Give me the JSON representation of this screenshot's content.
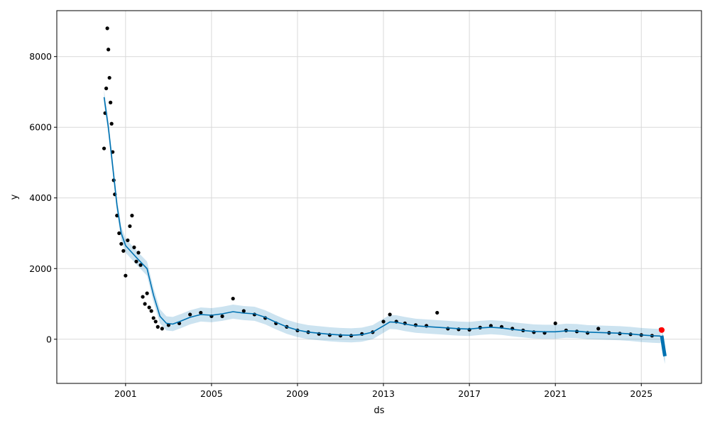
{
  "chart_data": {
    "type": "line",
    "title": "",
    "xlabel": "ds",
    "ylabel": "y",
    "xlim": [
      1997.8,
      2027.8
    ],
    "ylim": [
      -1250,
      9300
    ],
    "xticks": [
      2001,
      2005,
      2009,
      2013,
      2017,
      2021,
      2025
    ],
    "xtick_labels": [
      "2001",
      "2005",
      "2009",
      "2013",
      "2017",
      "2021",
      "2025"
    ],
    "yticks": [
      0,
      2000,
      4000,
      6000,
      8000
    ],
    "ytick_labels": [
      "0",
      "2000",
      "4000",
      "6000",
      "8000"
    ],
    "grid": true,
    "legend": "none",
    "colors": {
      "observed": "#000000",
      "forecast": "#0072B2",
      "uncertainty": "#0072B2",
      "highlight": "#ff0000",
      "grid": "#d9d9d9"
    },
    "series": [
      {
        "role": "forecast-line",
        "x": [
          2000.0,
          2000.2,
          2000.4,
          2000.6,
          2000.8,
          2001.0,
          2001.3,
          2001.6,
          2002.0,
          2002.3,
          2002.6,
          2002.9,
          2003.2,
          2003.6,
          2004.0,
          2004.5,
          2005.0,
          2005.5,
          2006.0,
          2006.5,
          2007.0,
          2007.5,
          2008.0,
          2008.5,
          2009.0,
          2009.5,
          2010.0,
          2010.5,
          2011.0,
          2011.5,
          2012.0,
          2012.5,
          2013.0,
          2013.3,
          2013.6,
          2014.0,
          2014.5,
          2015.0,
          2015.5,
          2016.0,
          2016.5,
          2017.0,
          2017.5,
          2018.0,
          2018.5,
          2019.0,
          2019.5,
          2020.0,
          2020.5,
          2021.0,
          2021.5,
          2022.0,
          2022.5,
          2023.0,
          2023.5,
          2024.0,
          2024.5,
          2025.0,
          2025.5,
          2025.9
        ],
        "y": [
          6850,
          6000,
          4900,
          3800,
          3000,
          2650,
          2450,
          2250,
          2000,
          1250,
          650,
          450,
          430,
          520,
          620,
          700,
          680,
          720,
          780,
          740,
          720,
          620,
          480,
          350,
          260,
          200,
          170,
          140,
          120,
          110,
          130,
          200,
          380,
          490,
          480,
          430,
          380,
          360,
          340,
          320,
          300,
          290,
          320,
          340,
          320,
          280,
          250,
          220,
          210,
          210,
          240,
          230,
          200,
          190,
          180,
          170,
          150,
          120,
          100,
          90
        ]
      },
      {
        "role": "uncertainty-band",
        "x": [
          2000.0,
          2000.2,
          2000.4,
          2000.6,
          2000.8,
          2001.0,
          2001.3,
          2001.6,
          2002.0,
          2002.3,
          2002.6,
          2002.9,
          2003.2,
          2003.6,
          2004.0,
          2004.5,
          2005.0,
          2005.5,
          2006.0,
          2006.5,
          2007.0,
          2007.5,
          2008.0,
          2008.5,
          2009.0,
          2009.5,
          2010.0,
          2010.5,
          2011.0,
          2011.5,
          2012.0,
          2012.5,
          2013.0,
          2013.3,
          2013.6,
          2014.0,
          2014.5,
          2015.0,
          2015.5,
          2016.0,
          2016.5,
          2017.0,
          2017.5,
          2018.0,
          2018.5,
          2019.0,
          2019.5,
          2020.0,
          2020.5,
          2021.0,
          2021.5,
          2022.0,
          2022.5,
          2023.0,
          2023.5,
          2024.0,
          2024.5,
          2025.0,
          2025.5,
          2025.9
        ],
        "lower": [
          6650,
          5800,
          4700,
          3600,
          2800,
          2450,
          2250,
          2050,
          1800,
          1050,
          450,
          250,
          230,
          320,
          420,
          500,
          480,
          520,
          580,
          540,
          520,
          420,
          280,
          150,
          60,
          0,
          -30,
          -60,
          -80,
          -90,
          -70,
          0,
          180,
          290,
          280,
          230,
          180,
          160,
          140,
          120,
          100,
          90,
          120,
          140,
          120,
          80,
          50,
          20,
          10,
          10,
          40,
          30,
          0,
          -10,
          -20,
          -30,
          -50,
          -80,
          -100,
          -110
        ],
        "upper": [
          7050,
          6200,
          5100,
          4000,
          3200,
          2850,
          2650,
          2450,
          2200,
          1450,
          850,
          650,
          630,
          720,
          820,
          900,
          880,
          920,
          980,
          940,
          920,
          820,
          680,
          550,
          460,
          400,
          370,
          340,
          320,
          310,
          330,
          400,
          580,
          690,
          680,
          630,
          580,
          560,
          540,
          520,
          500,
          490,
          520,
          540,
          520,
          480,
          450,
          420,
          410,
          410,
          440,
          430,
          400,
          390,
          380,
          370,
          350,
          320,
          300,
          290
        ]
      },
      {
        "role": "observed-points",
        "x": [
          2000.0,
          2000.05,
          2000.1,
          2000.15,
          2000.2,
          2000.25,
          2000.3,
          2000.35,
          2000.4,
          2000.45,
          2000.5,
          2000.6,
          2000.7,
          2000.8,
          2000.9,
          2001.0,
          2001.1,
          2001.2,
          2001.3,
          2001.4,
          2001.5,
          2001.6,
          2001.7,
          2001.8,
          2001.9,
          2002.0,
          2002.1,
          2002.2,
          2002.3,
          2002.4,
          2002.5,
          2002.7,
          2003.0,
          2003.5,
          2004.0,
          2004.5,
          2005.0,
          2005.5,
          2006.0,
          2006.5,
          2007.0,
          2007.5,
          2008.0,
          2008.5,
          2009.0,
          2009.5,
          2010.0,
          2010.5,
          2011.0,
          2011.5,
          2012.0,
          2012.5,
          2013.0,
          2013.3,
          2013.6,
          2014.0,
          2014.5,
          2015.0,
          2015.5,
          2016.0,
          2016.5,
          2017.0,
          2017.5,
          2018.0,
          2018.5,
          2019.0,
          2019.5,
          2020.0,
          2020.5,
          2021.0,
          2021.5,
          2022.0,
          2022.5,
          2023.0,
          2023.5,
          2024.0,
          2024.5,
          2025.0,
          2025.5,
          2025.9
        ],
        "y": [
          5400,
          6400,
          7100,
          8800,
          8200,
          7400,
          6700,
          6100,
          5300,
          4500,
          4100,
          3500,
          3000,
          2700,
          2500,
          1800,
          2800,
          3200,
          3500,
          2600,
          2200,
          2450,
          2100,
          1200,
          1000,
          1300,
          900,
          800,
          600,
          500,
          350,
          300,
          400,
          450,
          700,
          750,
          650,
          650,
          1150,
          800,
          700,
          600,
          450,
          350,
          250,
          200,
          150,
          120,
          100,
          100,
          150,
          200,
          500,
          700,
          500,
          450,
          400,
          380,
          750,
          300,
          280,
          270,
          330,
          380,
          350,
          300,
          250,
          200,
          180,
          450,
          250,
          220,
          180,
          300,
          180,
          160,
          140,
          120,
          100,
          280
        ]
      },
      {
        "role": "forecast-tail",
        "x": [
          2025.95,
          2026.0,
          2026.05,
          2026.1
        ],
        "y": [
          100,
          -100,
          -300,
          -480
        ],
        "lower": [
          -100,
          -350,
          -550,
          -700
        ],
        "upper": [
          300,
          150,
          -50,
          -250
        ]
      },
      {
        "role": "highlight-point",
        "x": [
          2025.95
        ],
        "y": [
          260
        ]
      }
    ]
  }
}
